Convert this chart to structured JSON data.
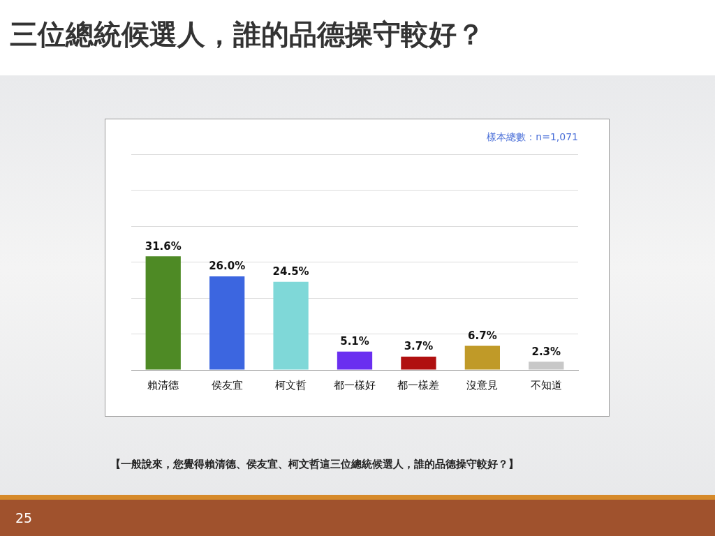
{
  "chart_data": {
    "type": "bar",
    "title": "三位總統候選人，誰的品德操守較好？",
    "subtitle": "樣本總數：n=1,071",
    "categories": [
      "賴清德",
      "侯友宜",
      "柯文哲",
      "都一樣好",
      "都一樣差",
      "沒意見",
      "不知道"
    ],
    "values": [
      31.6,
      26.0,
      24.5,
      5.1,
      3.7,
      6.7,
      2.3
    ],
    "value_labels": [
      "31.6%",
      "26.0%",
      "24.5%",
      "5.1%",
      "3.7%",
      "6.7%",
      "2.3%"
    ],
    "colors": [
      "#4e8a25",
      "#3c66e0",
      "#7fd8d8",
      "#6a2ff0",
      "#b01010",
      "#c09a28",
      "#c8c8c8"
    ],
    "ylim": [
      0,
      60
    ],
    "yticks": [
      {
        "value": 0,
        "label": null
      },
      {
        "value": 10,
        "label": null
      },
      {
        "value": 20,
        "label": null
      },
      {
        "value": 30,
        "label": null
      },
      {
        "value": 40,
        "label": null
      },
      {
        "value": 50,
        "label": null
      },
      {
        "value": 60,
        "label": null
      }
    ],
    "grid": "y",
    "tick_labels": "x",
    "legend": false,
    "annotations": [
      "【一般說來，您覺得賴清德、侯友宜、柯文哲這三位總統候選人，誰的品德操守較好？】",
      "25"
    ]
  }
}
